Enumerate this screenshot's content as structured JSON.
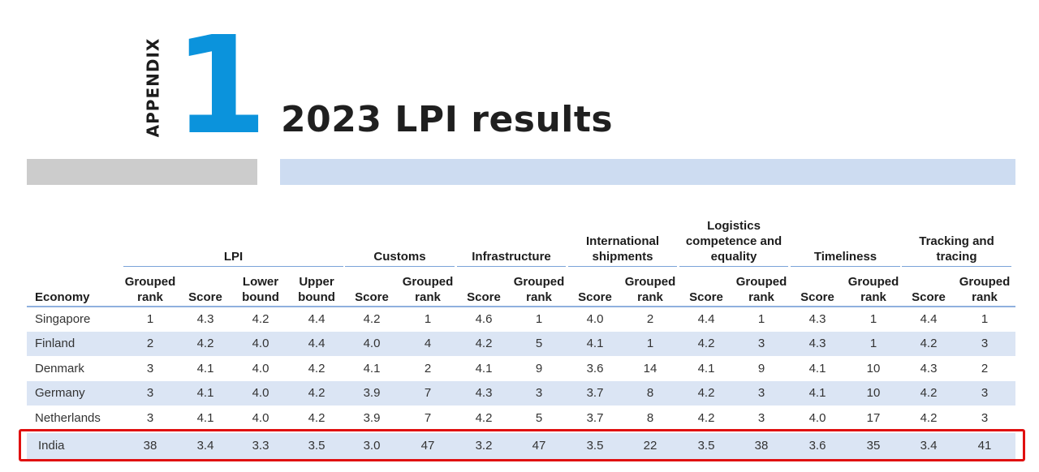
{
  "appendix": {
    "label": "APPENDIX",
    "number": "1"
  },
  "title": "2023 LPI results",
  "accent_color": "#0b93dc",
  "highlight_color": "#e01010",
  "table": {
    "groups": [
      "LPI",
      "Customs",
      "Infrastructure",
      "International shipments",
      "Logistics competence and equality",
      "Timeliness",
      "Tracking and tracing"
    ],
    "columns": [
      "Economy",
      "Grouped rank",
      "Score",
      "Lower bound",
      "Upper bound",
      "Score",
      "Grouped rank",
      "Score",
      "Grouped rank",
      "Score",
      "Grouped rank",
      "Score",
      "Grouped rank",
      "Score",
      "Grouped rank",
      "Score",
      "Grouped rank"
    ],
    "rows": [
      [
        "Singapore",
        "1",
        "4.3",
        "4.2",
        "4.4",
        "4.2",
        "1",
        "4.6",
        "1",
        "4.0",
        "2",
        "4.4",
        "1",
        "4.3",
        "1",
        "4.4",
        "1"
      ],
      [
        "Finland",
        "2",
        "4.2",
        "4.0",
        "4.4",
        "4.0",
        "4",
        "4.2",
        "5",
        "4.1",
        "1",
        "4.2",
        "3",
        "4.3",
        "1",
        "4.2",
        "3"
      ],
      [
        "Denmark",
        "3",
        "4.1",
        "4.0",
        "4.2",
        "4.1",
        "2",
        "4.1",
        "9",
        "3.6",
        "14",
        "4.1",
        "9",
        "4.1",
        "10",
        "4.3",
        "2"
      ],
      [
        "Germany",
        "3",
        "4.1",
        "4.0",
        "4.2",
        "3.9",
        "7",
        "4.3",
        "3",
        "3.7",
        "8",
        "4.2",
        "3",
        "4.1",
        "10",
        "4.2",
        "3"
      ],
      [
        "Netherlands",
        "3",
        "4.1",
        "4.0",
        "4.2",
        "3.9",
        "7",
        "4.2",
        "5",
        "3.7",
        "8",
        "4.2",
        "3",
        "4.0",
        "17",
        "4.2",
        "3"
      ]
    ],
    "highlighted_row": [
      "India",
      "38",
      "3.4",
      "3.3",
      "3.5",
      "3.0",
      "47",
      "3.2",
      "47",
      "3.5",
      "22",
      "3.5",
      "38",
      "3.6",
      "35",
      "3.4",
      "41"
    ]
  }
}
